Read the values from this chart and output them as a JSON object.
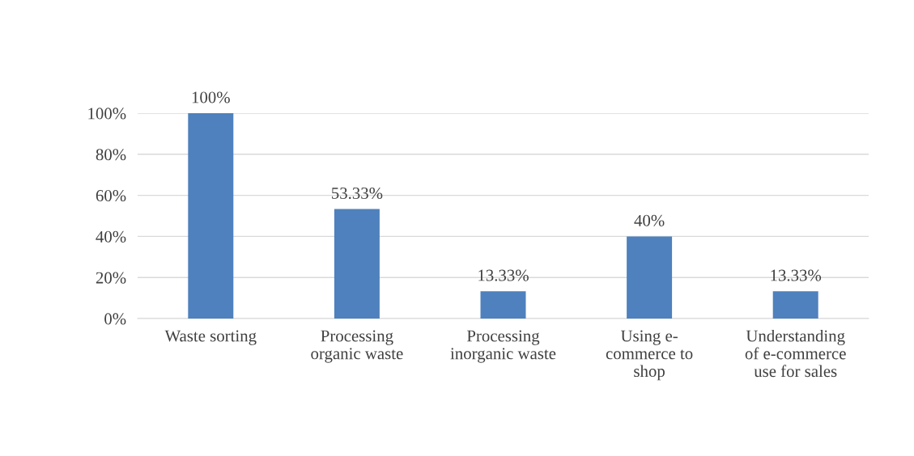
{
  "chart_data": {
    "type": "bar",
    "categories": [
      "Waste sorting",
      "Processing\norganic waste",
      "Processing\ninorganic waste",
      "Using e-\ncommerce to\nshop",
      "Understanding\nof e-commerce\nuse for sales"
    ],
    "values": [
      100,
      53.33,
      13.33,
      40,
      13.33
    ],
    "color": "#4e81bd",
    "value_labels": [
      "100%",
      "53.33%",
      "13.33%",
      "40%",
      "13.33%"
    ],
    "ylim": [
      0,
      100
    ],
    "yticks": [
      {
        "value": 0,
        "label": "0%"
      },
      {
        "value": 20,
        "label": "20%"
      },
      {
        "value": 40,
        "label": "40%"
      },
      {
        "value": 60,
        "label": "60%"
      },
      {
        "value": 80,
        "label": "80%"
      },
      {
        "value": 100,
        "label": "100%"
      }
    ],
    "grid": "y",
    "legend": false
  }
}
